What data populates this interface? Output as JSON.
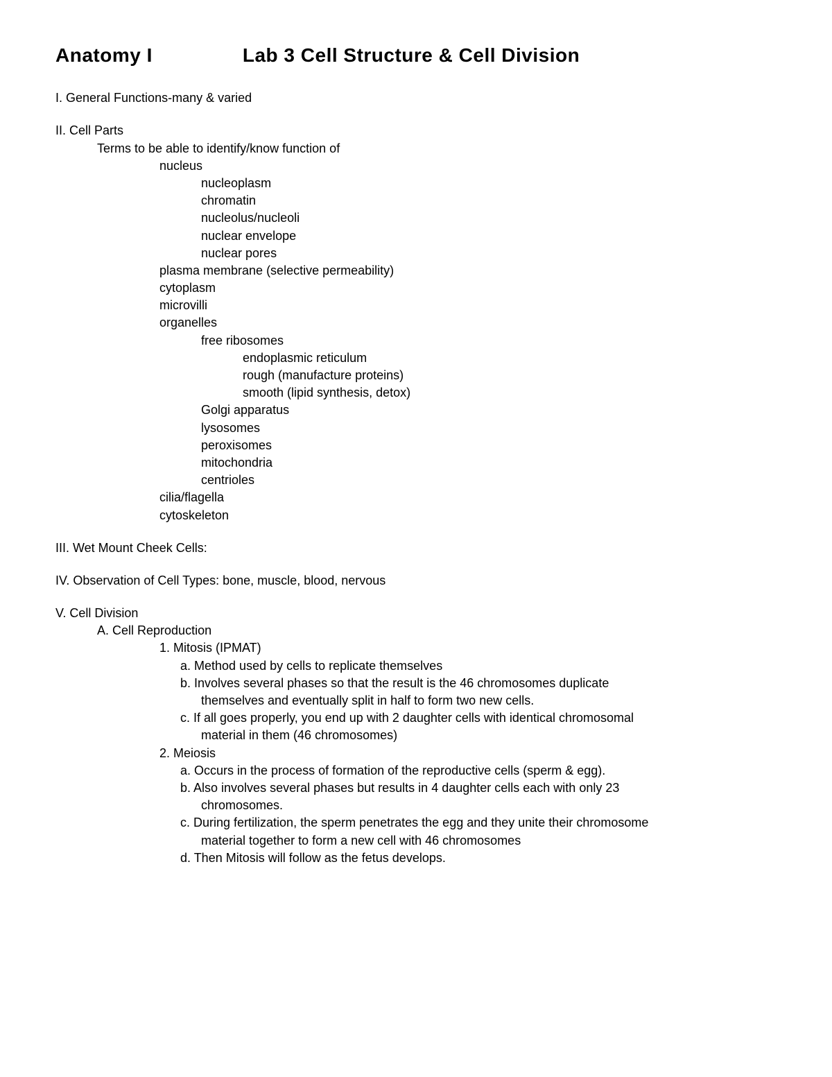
{
  "header": {
    "left": "Anatomy I",
    "right": "Lab 3 Cell Structure & Cell Division"
  },
  "section1": {
    "title": "I.  General Functions-many & varied"
  },
  "section2": {
    "title": "II.  Cell Parts",
    "intro": "Terms to be able to identify/know function of",
    "terms": {
      "nucleus": "nucleus",
      "nucleoplasm": "nucleoplasm",
      "chromatin": "chromatin",
      "nucleolus": "nucleolus/nucleoli",
      "nuclear_envelope": "nuclear envelope",
      "nuclear_pores": "nuclear pores",
      "plasma_membrane": "plasma membrane (selective permeability)",
      "cytoplasm": "cytoplasm",
      "microvilli": "microvilli",
      "organelles": "organelles",
      "free_ribosomes": "free ribosomes",
      "er": "endoplasmic reticulum",
      "rough": "rough (manufacture proteins)",
      "smooth": "smooth (lipid synthesis, detox)",
      "golgi": "Golgi apparatus",
      "lysosomes": "lysosomes",
      "peroxisomes": "peroxisomes",
      "mitochondria": "mitochondria",
      "centrioles": "centrioles",
      "cilia": "cilia/flagella",
      "cytoskeleton": "cytoskeleton"
    }
  },
  "section3": {
    "title": "III. Wet Mount Cheek Cells:"
  },
  "section4": {
    "title": "IV. Observation of Cell Types: bone, muscle, blood, nervous"
  },
  "section5": {
    "title": "V.  Cell Division",
    "a_title": "A.  Cell Reproduction",
    "mitosis": {
      "title": "1. Mitosis (IPMAT)",
      "a": "a.  Method used by cells to replicate themselves",
      "b": "b.  Involves several phases so that the result is the 46 chromosomes duplicate",
      "b_cont": "themselves and eventually split in half to form two new cells.",
      "c": "c.  If all goes properly, you end up with 2 daughter cells with identical chromosomal",
      "c_cont": "material in them (46 chromosomes)"
    },
    "meiosis": {
      "title": "2. Meiosis",
      "a": "a.  Occurs in the process of formation of the reproductive cells (sperm & egg).",
      "b": "b.  Also involves several phases but results in 4 daughter cells each with only 23",
      "b_cont": "chromosomes.",
      "c": "c.  During fertilization, the sperm penetrates the egg and they unite their chromosome",
      "c_cont": "material together to form a new cell with 46 chromosomes",
      "d": "d.  Then Mitosis will follow as the fetus develops."
    }
  }
}
